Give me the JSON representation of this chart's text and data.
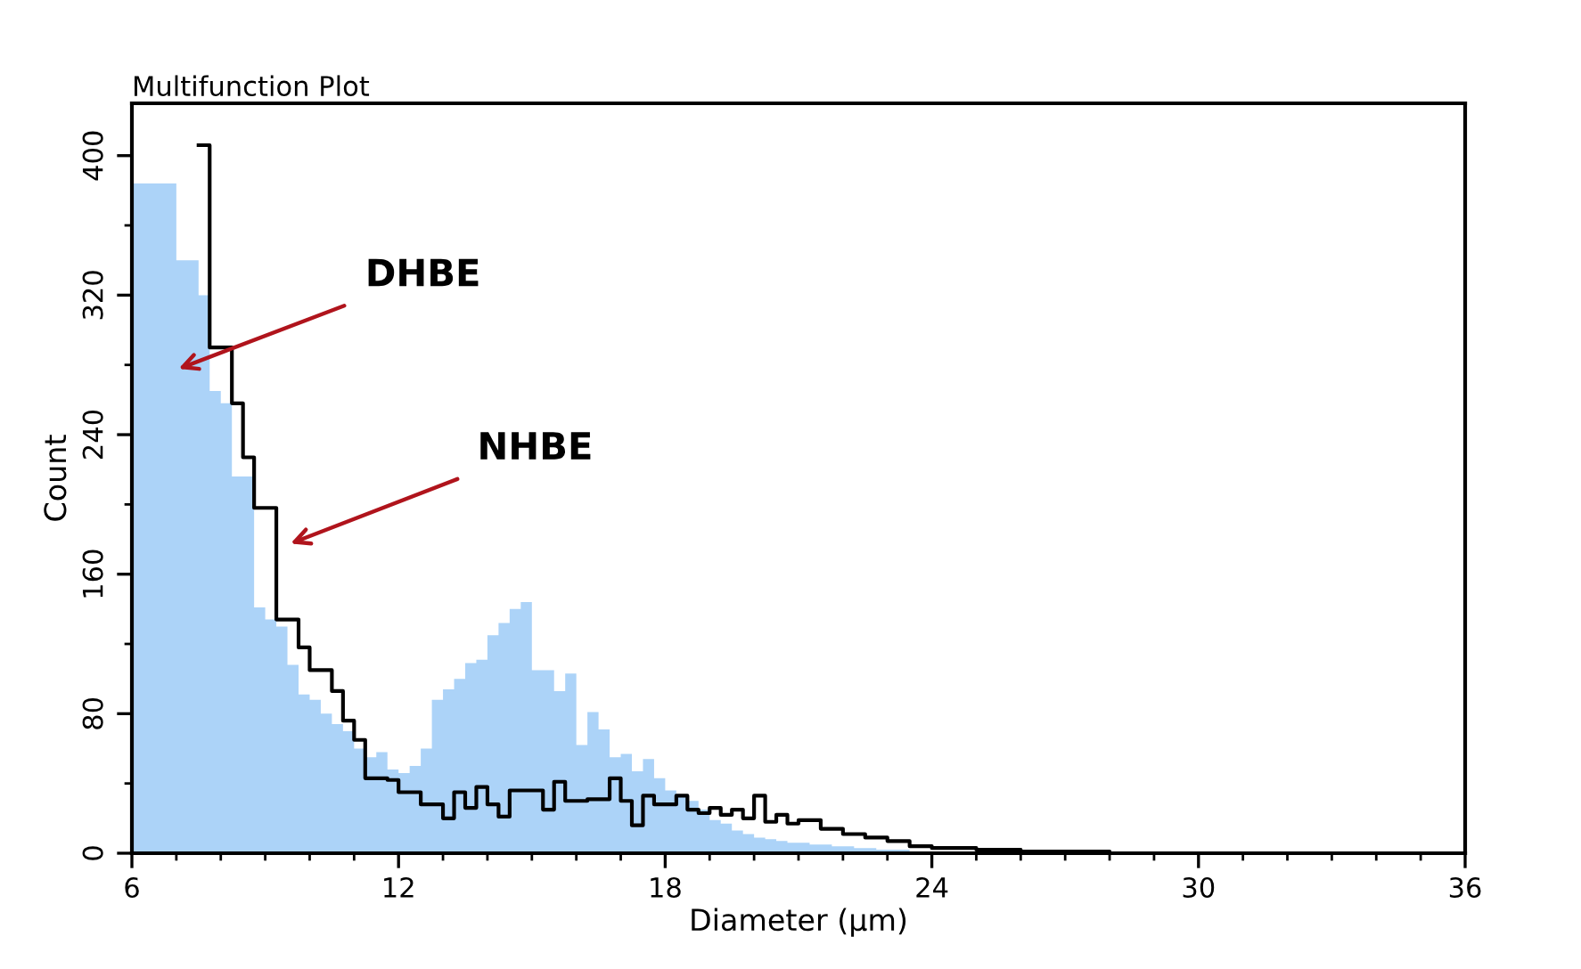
{
  "chart_data": {
    "type": "histogram",
    "title": "Multifunction Plot",
    "xlabel": "Diameter (µm)",
    "ylabel": "Count",
    "bins": [
      6.0,
      6.25,
      6.5,
      6.75,
      7.0,
      7.25,
      7.5,
      7.75,
      8.0,
      8.25,
      8.5,
      8.75,
      9.0,
      9.25,
      9.5,
      9.75,
      10.0,
      10.25,
      10.5,
      10.75,
      11.0,
      11.25,
      11.5,
      11.75,
      12.0,
      12.25,
      12.5,
      12.75,
      13.0,
      13.25,
      13.5,
      13.75,
      14.0,
      14.25,
      14.5,
      14.75,
      15.0,
      15.25,
      15.5,
      15.75,
      16.0,
      16.25,
      16.5,
      16.75,
      17.0,
      17.25,
      17.5,
      17.75,
      18.0,
      18.25,
      18.5,
      18.75,
      19.0,
      19.25,
      19.5,
      19.75,
      20.0,
      20.25,
      20.5,
      20.75,
      21.0,
      21.25,
      21.5,
      21.75,
      22.0,
      22.25,
      22.5,
      22.75,
      23.0,
      23.25,
      23.5,
      23.75,
      24.0
    ],
    "series": [
      {
        "color": "#acd3f8",
        "values": [
          384,
          384,
          384,
          384,
          340,
          340,
          320,
          265,
          258,
          216,
          216,
          141,
          134,
          130,
          108,
          91,
          88,
          80,
          74,
          70,
          60,
          55,
          58,
          48,
          46,
          50,
          60,
          88,
          94,
          100,
          109,
          111,
          125,
          132,
          140,
          144,
          105,
          105,
          93,
          103,
          62,
          81,
          71,
          55,
          57,
          47,
          54,
          43,
          36,
          33,
          30,
          25,
          19,
          17,
          13,
          11,
          9,
          8,
          7,
          6,
          6,
          5,
          5,
          4,
          4,
          3,
          3,
          2,
          2,
          2,
          1,
          1
        ]
      },
      {
        "type": "step",
        "color": "#000000",
        "x": [
          7.5,
          7.75,
          8.25,
          8.5,
          8.75,
          9.25,
          9.75,
          10.0,
          10.5,
          10.75,
          11.0,
          11.25,
          11.75,
          12.0,
          12.5,
          13.0,
          13.25,
          13.5,
          13.75,
          14.0,
          14.25,
          14.5,
          15.0,
          15.25,
          15.5,
          15.75,
          16.25,
          16.5,
          16.75,
          17.0,
          17.25,
          17.5,
          17.75,
          18.25,
          18.5,
          18.75,
          19.0,
          19.25,
          19.5,
          19.75,
          20.0,
          20.25,
          20.5,
          20.75,
          21.0,
          21.5,
          22.0,
          22.5,
          23.0,
          23.5,
          24.0,
          25.0,
          26.0,
          27.0,
          28.0,
          30.0,
          36.0
        ],
        "values": [
          406,
          290,
          258,
          227,
          198,
          134,
          118,
          105,
          93,
          76,
          65,
          43,
          42,
          35,
          28,
          20,
          35,
          26,
          38,
          28,
          21,
          36,
          36,
          25,
          41,
          30,
          31,
          31,
          43,
          30,
          16,
          33,
          28,
          33,
          25,
          23,
          26,
          22,
          25,
          20,
          33,
          18,
          22,
          17,
          19,
          14,
          11,
          9,
          7,
          4,
          3,
          2,
          1,
          1,
          0,
          0,
          0
        ]
      }
    ],
    "annotations": [
      "DHBE",
      "NHBE"
    ],
    "xlim": [
      6,
      36
    ],
    "xticks": [
      6,
      12,
      18,
      24,
      30,
      36
    ],
    "ylim": [
      0,
      430
    ],
    "yticks": [
      0,
      80,
      160,
      240,
      320,
      400
    ],
    "grid": false,
    "legend": false
  }
}
